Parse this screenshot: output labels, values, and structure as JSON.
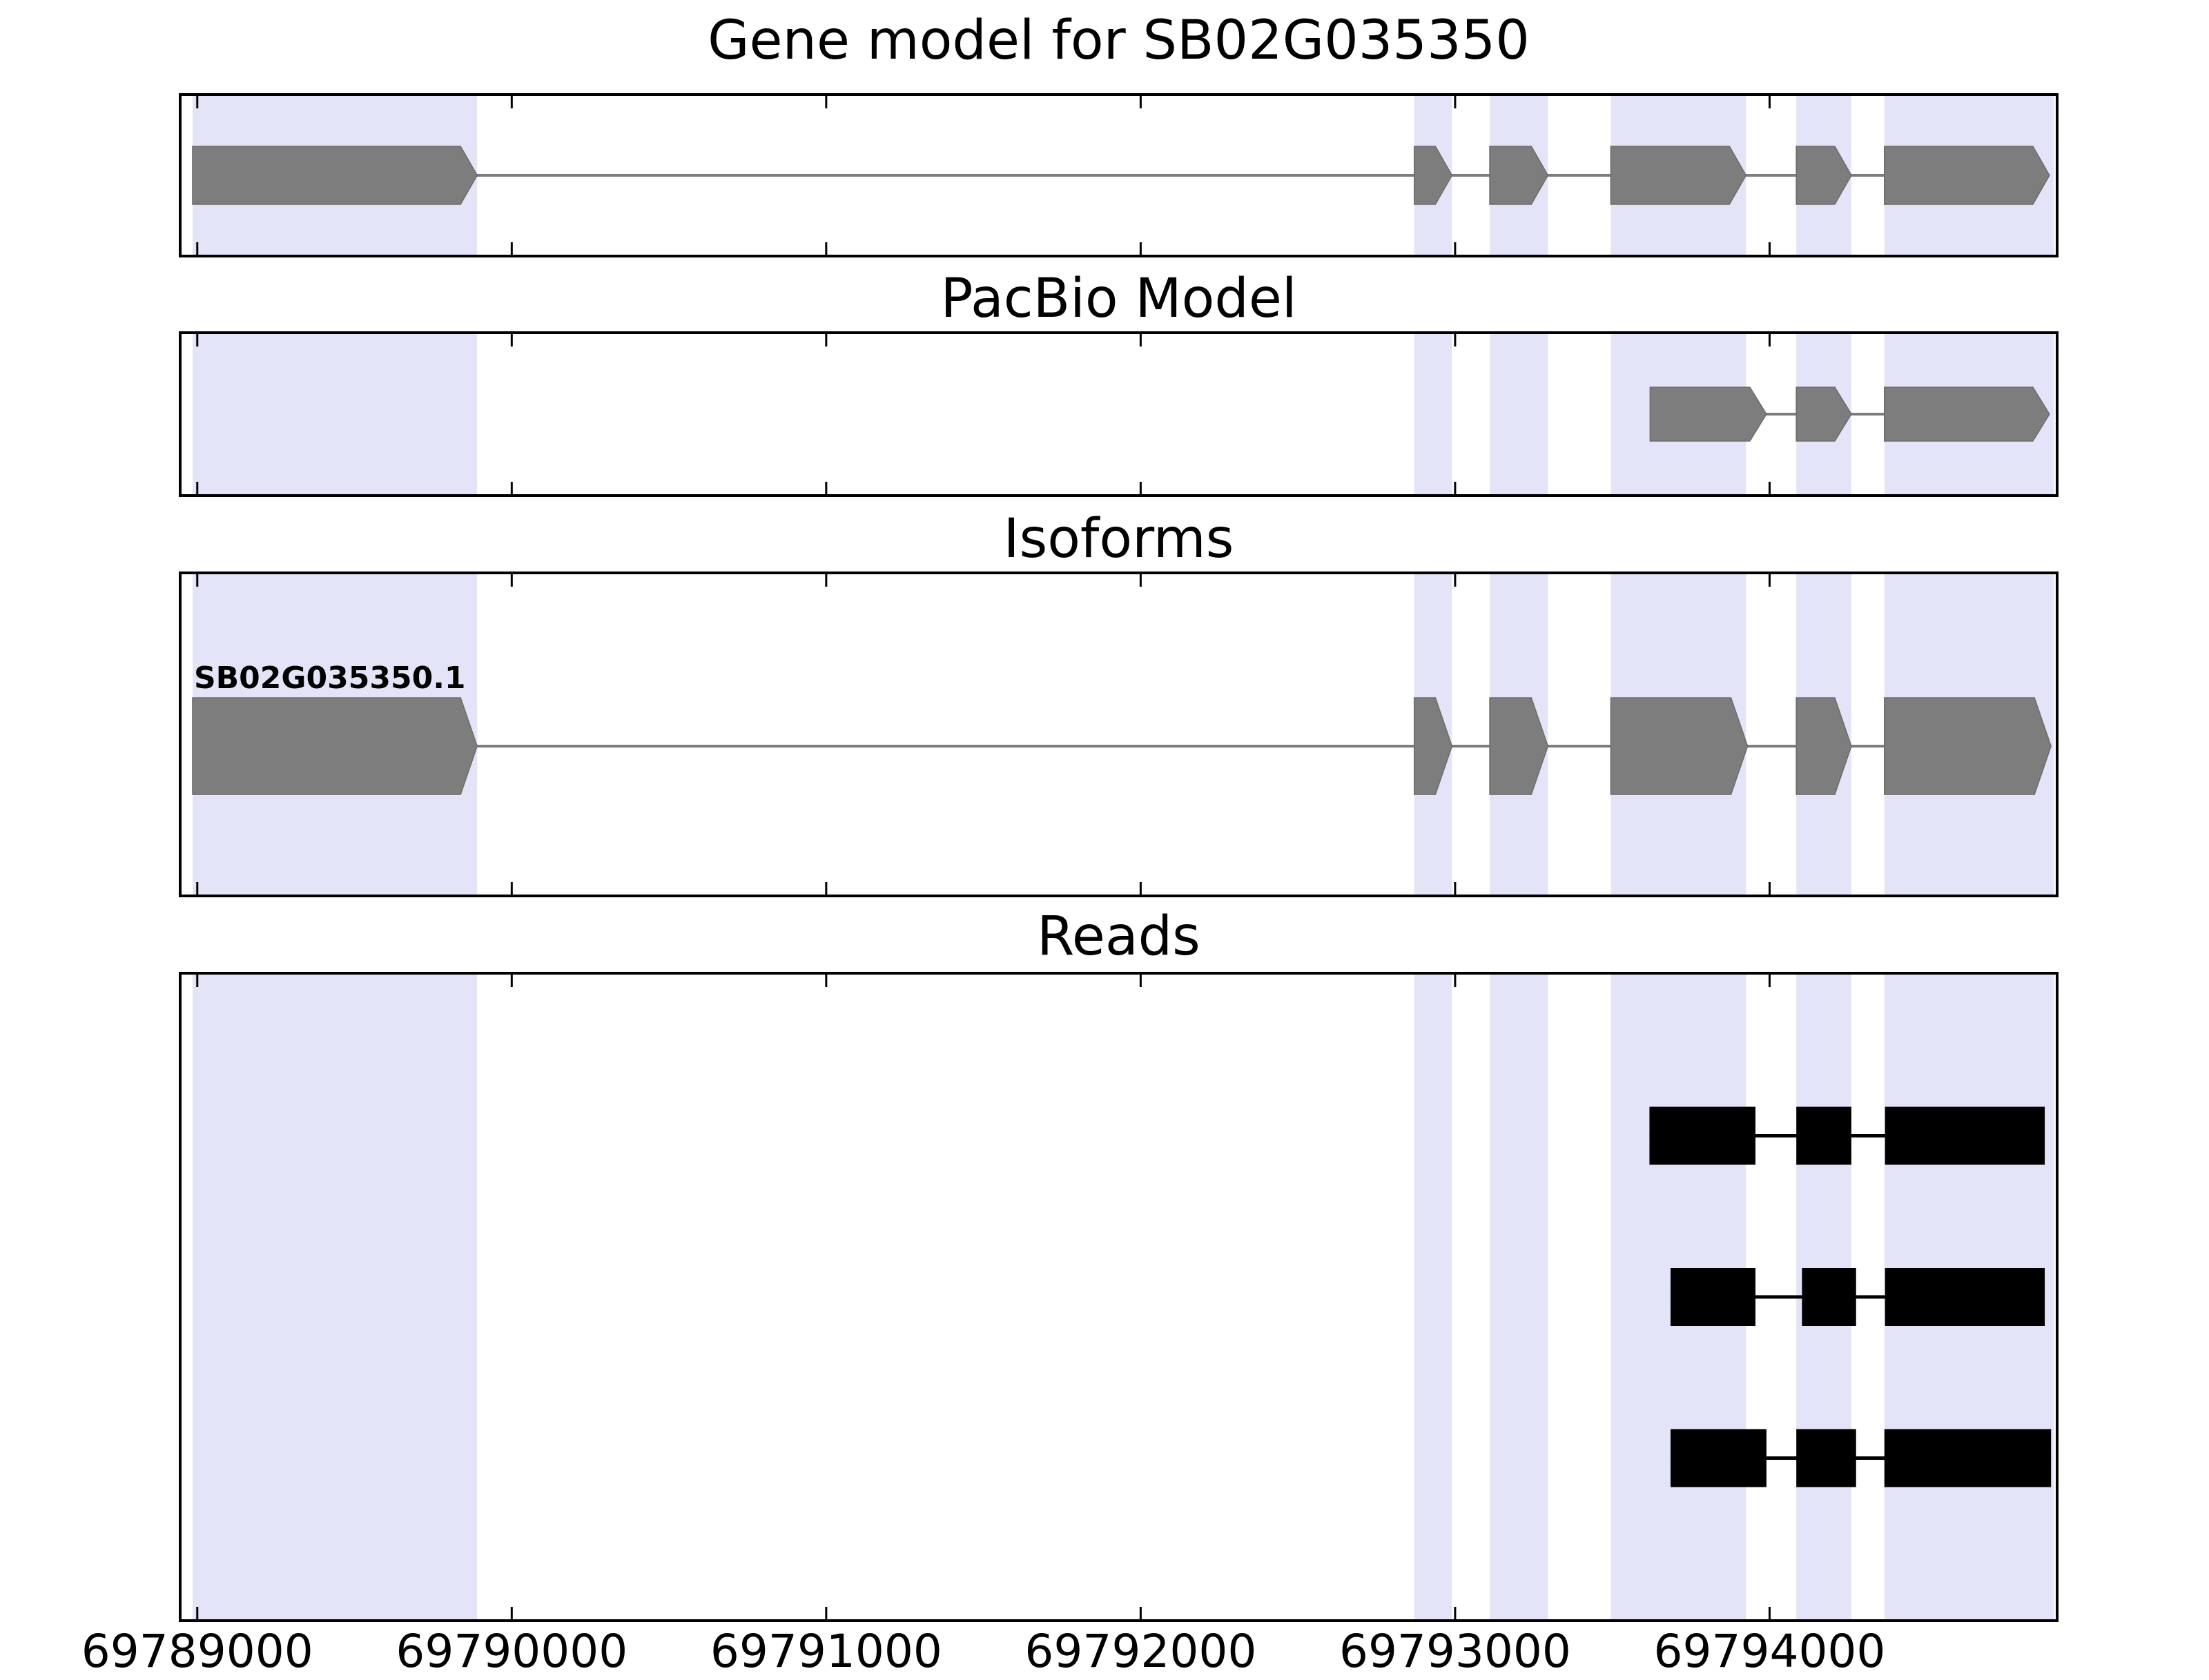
{
  "figure": {
    "background": "#ffffff",
    "highlight_color": "#e4e4f8",
    "exon_color": "#7d7d7d",
    "exon_edge": "#6b6b6b",
    "read_color": "#000000",
    "axis_color": "#000000"
  },
  "chart_data": {
    "type": "genome-annotation-tracks",
    "title": "Gene model for SB02G035350",
    "gene_id": "SB02G035350",
    "x_axis": {
      "ticks": [
        69789000,
        69790000,
        69791000,
        69792000,
        69793000,
        69794000
      ],
      "tick_labels": [
        "69789000",
        "69790000",
        "69791000",
        "69792000",
        "69793000",
        "69794000"
      ],
      "xlim": [
        69788950,
        69794910
      ]
    },
    "highlight_regions": [
      [
        69788985,
        69789890
      ],
      [
        69792870,
        69792990
      ],
      [
        69793110,
        69793295
      ],
      [
        69793495,
        69793925
      ],
      [
        69794085,
        69794260
      ],
      [
        69794365,
        69794905
      ]
    ],
    "panels": [
      {
        "title": "Gene model for SB02G035350",
        "kind": "model",
        "features": [
          {
            "label": "",
            "strand": "+",
            "exons": [
              [
                69788985,
                69789890
              ],
              [
                69792870,
                69792990
              ],
              [
                69793110,
                69793295
              ],
              [
                69793495,
                69793925
              ],
              [
                69794085,
                69794260
              ],
              [
                69794365,
                69794890
              ]
            ]
          }
        ]
      },
      {
        "title": "PacBio Model",
        "kind": "model",
        "features": [
          {
            "label": "",
            "strand": "+",
            "exons": [
              [
                69793620,
                69793990
              ],
              [
                69794085,
                69794260
              ],
              [
                69794365,
                69794890
              ]
            ]
          }
        ]
      },
      {
        "title": "Isoforms",
        "kind": "model",
        "features": [
          {
            "label": "SB02G035350.1",
            "strand": "+",
            "exons": [
              [
                69788985,
                69789890
              ],
              [
                69792870,
                69792990
              ],
              [
                69793110,
                69793295
              ],
              [
                69793495,
                69793930
              ],
              [
                69794085,
                69794260
              ],
              [
                69794365,
                69794895
              ]
            ]
          }
        ]
      },
      {
        "title": "Reads",
        "kind": "reads",
        "features": [
          {
            "blocks": [
              [
                69793618,
                69793955
              ],
              [
                69794085,
                69794260
              ],
              [
                69794367,
                69794875
              ]
            ]
          },
          {
            "blocks": [
              [
                69793685,
                69793955
              ],
              [
                69794103,
                69794275
              ],
              [
                69794367,
                69794875
              ]
            ]
          },
          {
            "blocks": [
              [
                69793685,
                69793990
              ],
              [
                69794085,
                69794275
              ],
              [
                69794365,
                69794895
              ]
            ]
          }
        ]
      }
    ]
  }
}
